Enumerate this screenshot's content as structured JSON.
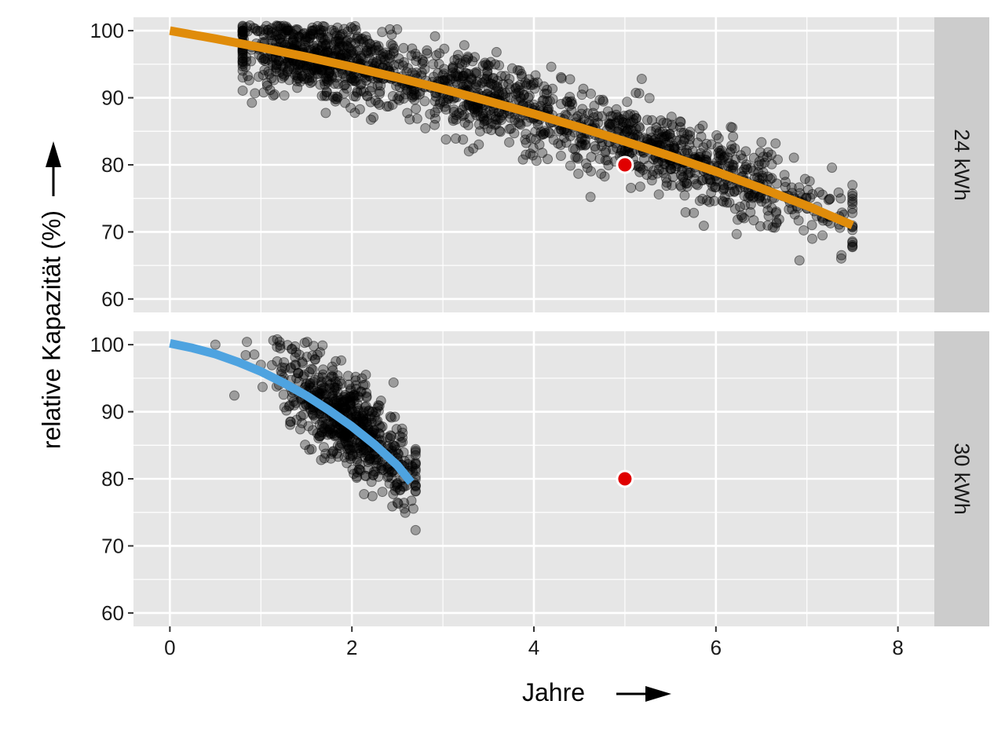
{
  "chart_data": {
    "type": "scatter",
    "xlabel": "Jahre",
    "ylabel": "relative Kapazität (%)",
    "xlim": [
      -0.4,
      8.4
    ],
    "xticks": [
      0,
      2,
      4,
      6,
      8
    ],
    "x_tick_labels": [
      "0",
      "2",
      "4",
      "6",
      "8"
    ],
    "ylim": [
      58,
      102
    ],
    "yticks": [
      60,
      70,
      80,
      90,
      100
    ],
    "y_tick_labels": [
      "60",
      "70",
      "80",
      "90",
      "100"
    ],
    "grid": true,
    "colors": {
      "panel_bg": "#e6e6e6",
      "strip_bg": "#cccccc",
      "grid": "#ffffff",
      "points": "#000000",
      "fit_24kwh": "#e08c0a",
      "fit_30kwh": "#4ea3e0",
      "reference_point": "#e00000"
    },
    "panels": [
      {
        "label": "24 kWh",
        "fit_curve": {
          "x": [
            0,
            0.5,
            1,
            1.5,
            2,
            2.5,
            3,
            3.5,
            4,
            4.5,
            5,
            5.5,
            6,
            6.5,
            7,
            7.5
          ],
          "y": [
            100,
            98.8,
            97.5,
            96.1,
            94.6,
            93.0,
            91.3,
            89.5,
            87.6,
            85.6,
            83.5,
            81.3,
            79.0,
            76.5,
            73.9,
            71.0
          ]
        },
        "reference_point": {
          "x": 5,
          "y": 80
        },
        "scatter": {
          "count": 1700,
          "x_range": [
            0.8,
            7.5
          ],
          "description_points": [
            [
              0.8,
              97.0
            ],
            [
              1.0,
              97.5
            ],
            [
              1.3,
              95.5
            ],
            [
              1.5,
              94.5
            ],
            [
              2.0,
              92.5
            ],
            [
              2.2,
              91.0
            ],
            [
              2.5,
              93.0
            ],
            [
              3.0,
              90.5
            ],
            [
              3.5,
              91.5
            ],
            [
              4.0,
              87.0
            ],
            [
              4.5,
              86.0
            ],
            [
              5.0,
              82.0
            ],
            [
              5.5,
              80.0
            ],
            [
              6.0,
              78.5
            ],
            [
              6.5,
              76.5
            ],
            [
              7.0,
              73.5
            ],
            [
              7.4,
              71.5
            ]
          ]
        }
      },
      {
        "label": "30 kWh",
        "fit_curve": {
          "x": [
            0,
            0.25,
            0.5,
            0.75,
            1.0,
            1.25,
            1.5,
            1.75,
            2.0,
            2.25,
            2.5,
            2.65
          ],
          "y": [
            100.2,
            99.5,
            98.6,
            97.4,
            96.0,
            94.3,
            92.4,
            90.2,
            87.8,
            85.1,
            82.0,
            79.5
          ]
        },
        "reference_point": {
          "x": 5,
          "y": 80
        },
        "scatter": {
          "count": 650,
          "x_range": [
            0.4,
            2.7
          ],
          "description_points": [
            [
              0.5,
              100.0
            ],
            [
              1.0,
              97.0
            ],
            [
              1.2,
              94.0
            ],
            [
              1.5,
              91.0
            ],
            [
              1.8,
              89.0
            ],
            [
              2.0,
              85.0
            ],
            [
              2.2,
              83.0
            ],
            [
              2.4,
              81.0
            ],
            [
              2.6,
              79.0
            ]
          ]
        }
      }
    ]
  }
}
